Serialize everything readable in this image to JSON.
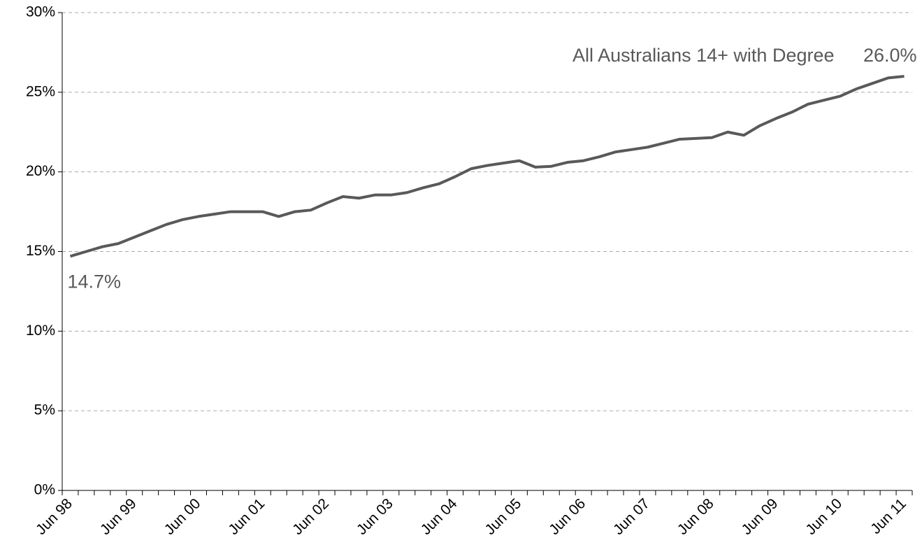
{
  "chart_data": {
    "type": "line",
    "categories": [
      "Jun 98",
      null,
      null,
      null,
      "Jun 99",
      null,
      null,
      null,
      "Jun 00",
      null,
      null,
      null,
      "Jun 01",
      null,
      null,
      null,
      "Jun 02",
      null,
      null,
      null,
      "Jun 03",
      null,
      null,
      null,
      "Jun 04",
      null,
      null,
      null,
      "Jun 05",
      null,
      null,
      null,
      "Jun 06",
      null,
      null,
      null,
      "Jun 07",
      null,
      null,
      null,
      "Jun 08",
      null,
      null,
      null,
      "Jun 09",
      null,
      null,
      null,
      "Jun 10",
      null,
      null,
      null,
      "Jun 11"
    ],
    "series": [
      {
        "name": "All Australians 14+ with Degree",
        "color": "#595959",
        "values": [
          14.7,
          15.0,
          15.3,
          15.5,
          15.9,
          16.3,
          16.7,
          17.0,
          17.2,
          17.35,
          17.5,
          17.5,
          17.5,
          17.2,
          17.5,
          17.6,
          18.05,
          18.45,
          18.35,
          18.55,
          18.55,
          18.7,
          19.0,
          19.25,
          19.7,
          20.2,
          20.4,
          20.55,
          20.7,
          20.3,
          20.35,
          20.6,
          20.7,
          20.95,
          21.25,
          21.4,
          21.55,
          21.8,
          22.05,
          22.1,
          22.15,
          22.5,
          22.3,
          22.9,
          23.35,
          23.75,
          24.25,
          24.5,
          24.75,
          25.2,
          25.55,
          25.9,
          26.0
        ],
        "value_labels": [
          "14.7%",
          null,
          null,
          null,
          null,
          null,
          null,
          null,
          null,
          null,
          null,
          null,
          null,
          null,
          null,
          null,
          null,
          null,
          null,
          null,
          null,
          null,
          null,
          null,
          null,
          null,
          null,
          null,
          null,
          null,
          null,
          null,
          null,
          null,
          null,
          null,
          null,
          null,
          null,
          null,
          null,
          null,
          null,
          null,
          null,
          null,
          null,
          null,
          null,
          null,
          null,
          null,
          "26.0%"
        ]
      }
    ],
    "ylim": [
      0,
      30
    ],
    "yticks": [
      {
        "value": 0,
        "label": "0%"
      },
      {
        "value": 5,
        "label": "5%"
      },
      {
        "value": 10,
        "label": "10%"
      },
      {
        "value": 15,
        "label": "15%"
      },
      {
        "value": 20,
        "label": "20%"
      },
      {
        "value": 25,
        "label": "25%"
      },
      {
        "value": 30,
        "label": "30%"
      }
    ],
    "grid": true
  }
}
